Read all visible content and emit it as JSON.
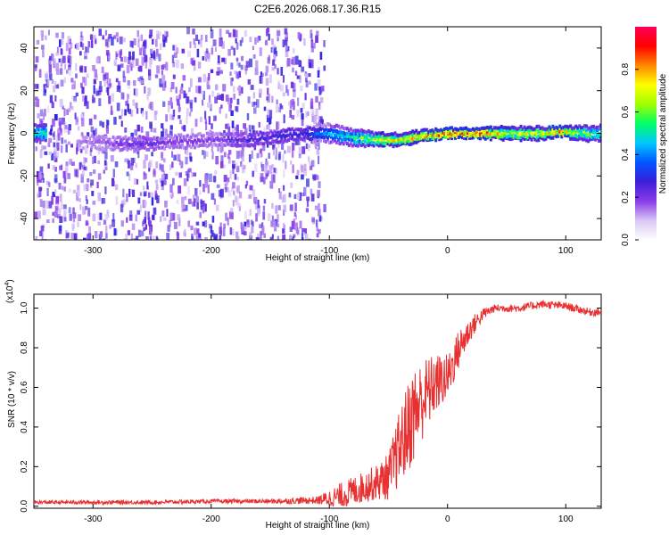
{
  "figure_title": "C2E6.2026.068.17.36.R15",
  "chart_data": [
    {
      "type": "heatmap",
      "title": "",
      "xlabel": "Height of straight line (km)",
      "ylabel": "Frequency (Hz)",
      "xlim": [
        -350,
        130
      ],
      "ylim": [
        -50,
        50
      ],
      "x_ticks": [
        -300,
        -200,
        -100,
        0,
        100
      ],
      "x_tick_labels": [
        "-300",
        "-200",
        "-100",
        "0",
        "100"
      ],
      "y_ticks": [
        -40,
        -20,
        0,
        20,
        40
      ],
      "y_tick_labels": [
        "-40",
        "-20",
        "0",
        "20",
        "40"
      ],
      "colorbar": {
        "label": "Normalized spectral amplitude",
        "range": [
          0,
          1
        ],
        "ticks": [
          0.0,
          0.2,
          0.4,
          0.6,
          0.8
        ],
        "tick_labels": [
          "0.0",
          "0.2",
          "0.4",
          "0.6",
          "0.8"
        ],
        "colors": [
          "#ffffff",
          "#d8c6f5",
          "#8a3ce8",
          "#3a1fd8",
          "#0055ff",
          "#00c8ff",
          "#00ff66",
          "#a0ff00",
          "#ffff00",
          "#ff8800",
          "#ff0000",
          "#ff0055"
        ]
      },
      "signal_profile": [
        {
          "x": -340,
          "freq": -4,
          "amp": 0.1
        },
        {
          "x": -260,
          "freq": -5,
          "amp": 0.22
        },
        {
          "x": -200,
          "freq": -3,
          "amp": 0.18
        },
        {
          "x": -170,
          "freq": -3,
          "amp": 0.25
        },
        {
          "x": -120,
          "freq": 0,
          "amp": 0.3
        },
        {
          "x": -100,
          "freq": 0,
          "amp": 0.45
        },
        {
          "x": -80,
          "freq": -2,
          "amp": 0.55
        },
        {
          "x": -60,
          "freq": -3,
          "amp": 0.7
        },
        {
          "x": -40,
          "freq": -3,
          "amp": 0.75
        },
        {
          "x": -20,
          "freq": -1,
          "amp": 0.82
        },
        {
          "x": 0,
          "freq": 0,
          "amp": 0.88
        },
        {
          "x": 20,
          "freq": 0,
          "amp": 0.92
        },
        {
          "x": 50,
          "freq": 0,
          "amp": 0.7
        },
        {
          "x": 80,
          "freq": 0,
          "amp": 0.72
        },
        {
          "x": 95,
          "freq": 1,
          "amp": 0.9
        },
        {
          "x": 110,
          "freq": 0,
          "amp": 0.65
        },
        {
          "x": 130,
          "freq": 0,
          "amp": 0.55
        }
      ],
      "noise_extent_x": [
        -350,
        -105
      ]
    },
    {
      "type": "line",
      "title": "",
      "xlabel": "Height of straight line (km)",
      "ylabel": "SNR (10 * v/v)",
      "y_scale_note": "(x10",
      "y_scale_exp": "4",
      "y_scale_suffix": ")",
      "xlim": [
        -350,
        130
      ],
      "ylim": [
        -0.01,
        1.07
      ],
      "x_ticks": [
        -300,
        -200,
        -100,
        0,
        100
      ],
      "x_tick_labels": [
        "-300",
        "-200",
        "-100",
        "0",
        "100"
      ],
      "y_ticks": [
        0.0,
        0.2,
        0.4,
        0.6,
        0.8,
        1.0
      ],
      "y_tick_labels": [
        "0.0",
        "0.2",
        "0.4",
        "0.6",
        "0.8",
        "1.0"
      ],
      "series": [
        {
          "name": "SNR",
          "color": "#e83030",
          "x": [
            -350,
            -300,
            -250,
            -200,
            -150,
            -110,
            -90,
            -70,
            -60,
            -50,
            -40,
            -30,
            -20,
            -10,
            0,
            10,
            20,
            30,
            40,
            60,
            80,
            100,
            120,
            130
          ],
          "y": [
            0.02,
            0.02,
            0.02,
            0.025,
            0.025,
            0.03,
            0.05,
            0.1,
            0.12,
            0.15,
            0.3,
            0.45,
            0.55,
            0.62,
            0.65,
            0.8,
            0.9,
            0.97,
            1.0,
            1.0,
            1.02,
            1.01,
            0.98,
            0.98
          ],
          "noise_amplitude": [
            0.01,
            0.01,
            0.01,
            0.01,
            0.012,
            0.02,
            0.07,
            0.08,
            0.09,
            0.12,
            0.2,
            0.25,
            0.2,
            0.15,
            0.12,
            0.1,
            0.06,
            0.03,
            0.02,
            0.02,
            0.02,
            0.02,
            0.02,
            0.02
          ]
        }
      ]
    }
  ]
}
